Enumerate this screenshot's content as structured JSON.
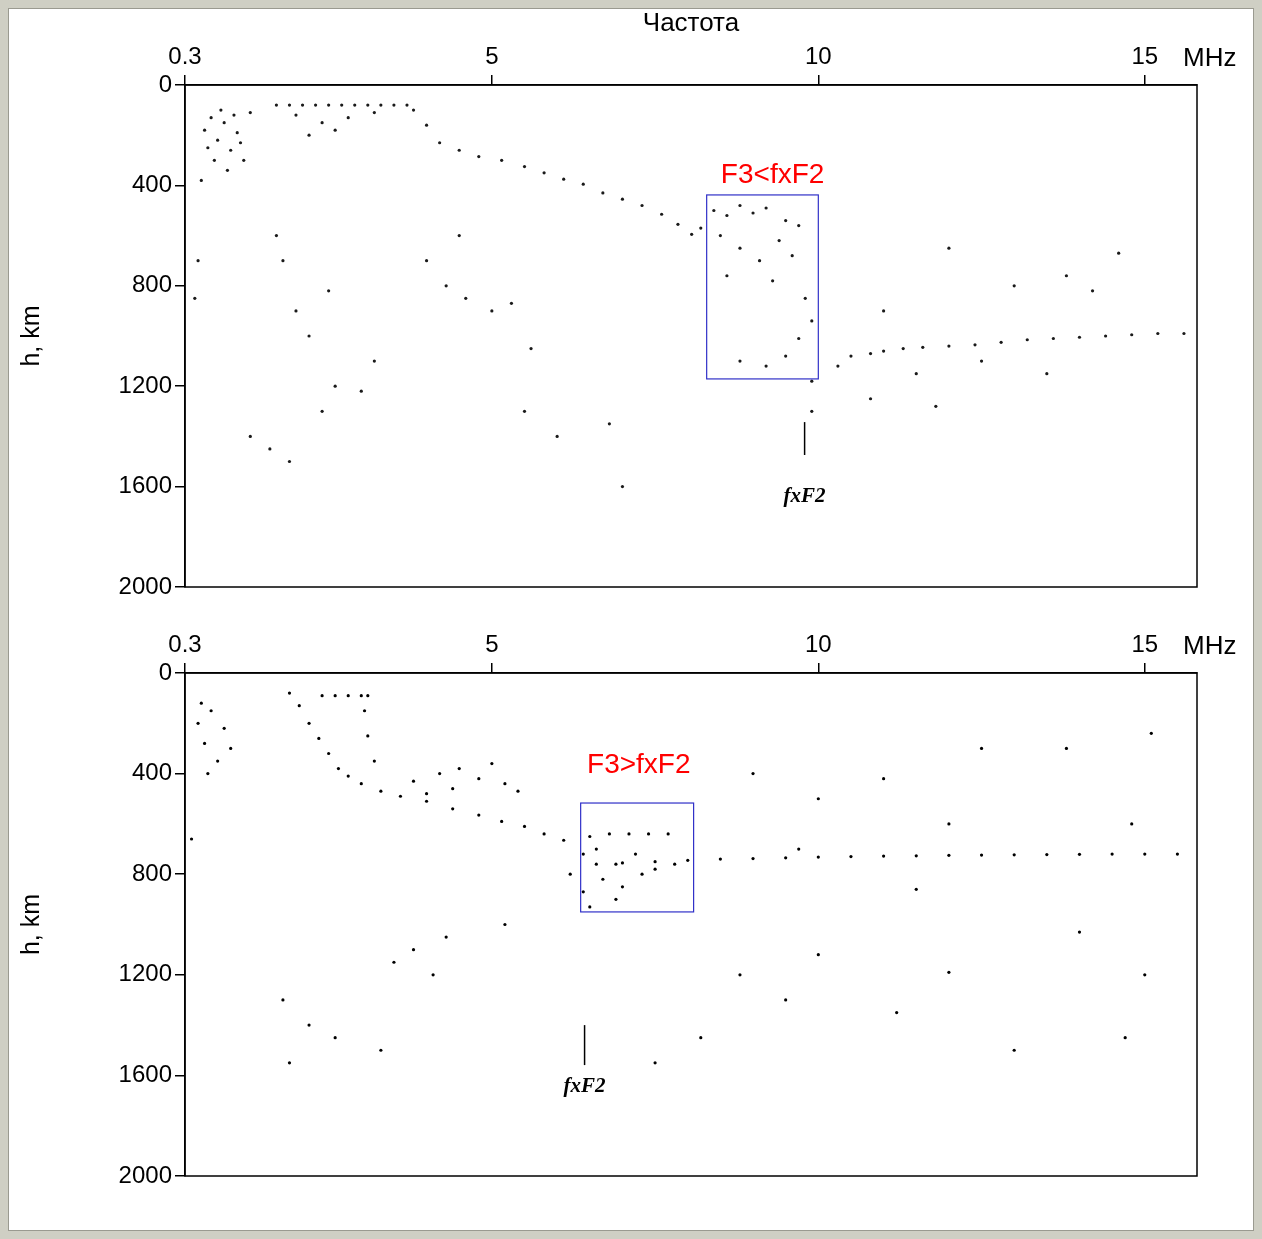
{
  "chart_data": [
    {
      "type": "scatter",
      "xlabel": "Частота",
      "x_unit": "MHz",
      "ylabel": "h, km",
      "xlim": [
        0.3,
        15.8
      ],
      "xticks": [
        0.3,
        5,
        10,
        15
      ],
      "ylim": [
        0,
        2000
      ],
      "yticks": [
        0,
        400,
        800,
        1200,
        1600,
        2000
      ],
      "grid": false,
      "color": "#1a1a1a",
      "marker": "dot",
      "x": [
        0.6,
        0.7,
        0.8,
        0.9,
        1.0,
        1.1,
        1.2,
        0.75,
        0.95,
        0.55,
        1.05,
        0.85,
        1.15,
        0.65,
        0.5,
        0.45,
        1.3,
        1.7,
        1.9,
        2.1,
        2.3,
        2.5,
        2.7,
        2.9,
        3.1,
        3.3,
        3.5,
        3.7,
        2.0,
        2.4,
        2.8,
        3.2,
        2.2,
        2.6,
        3.8,
        4.0,
        4.2,
        4.5,
        4.8,
        5.15,
        5.5,
        5.8,
        6.1,
        6.4,
        6.7,
        7.0,
        7.3,
        7.6,
        7.85,
        8.06,
        8.2,
        8.4,
        8.6,
        8.8,
        9.0,
        9.2,
        9.5,
        9.7,
        8.5,
        8.8,
        9.1,
        9.4,
        9.6,
        8.6,
        9.3,
        9.8,
        9.9,
        9.7,
        9.5,
        9.2,
        8.8,
        9.9,
        10.3,
        10.5,
        10.8,
        11.0,
        11.3,
        11.6,
        12.0,
        12.4,
        12.8,
        13.2,
        13.6,
        14.0,
        14.4,
        14.8,
        15.2,
        15.6,
        1.3,
        1.6,
        1.9,
        2.4,
        2.6,
        1.7,
        1.8,
        2.0,
        2.2,
        2.5,
        3.0,
        3.2,
        4.0,
        4.3,
        4.6,
        5.0,
        5.3,
        4.5,
        5.6,
        6.0,
        6.8,
        7.0,
        5.5,
        9.9,
        10.8,
        11.5,
        12.5,
        13.0,
        13.8,
        14.2,
        11.0,
        12.0,
        14.6,
        13.5,
        11.8
      ],
      "values": [
        180,
        130,
        220,
        150,
        260,
        190,
        300,
        300,
        340,
        380,
        120,
        100,
        230,
        250,
        700,
        850,
        110,
        80,
        80,
        80,
        80,
        80,
        80,
        80,
        80,
        80,
        80,
        80,
        120,
        150,
        130,
        110,
        200,
        180,
        100,
        160,
        230,
        260,
        285,
        300,
        325,
        350,
        375,
        395,
        430,
        455,
        480,
        515,
        555,
        595,
        570,
        500,
        520,
        480,
        510,
        490,
        540,
        560,
        600,
        650,
        700,
        620,
        680,
        760,
        780,
        850,
        940,
        1010,
        1080,
        1120,
        1100,
        1180,
        1120,
        1080,
        1070,
        1060,
        1050,
        1045,
        1040,
        1035,
        1025,
        1015,
        1010,
        1005,
        1000,
        995,
        990,
        990,
        1400,
        1450,
        1500,
        1300,
        1200,
        600,
        700,
        900,
        1000,
        820,
        1220,
        1100,
        700,
        800,
        850,
        900,
        870,
        600,
        1050,
        1400,
        1350,
        1600,
        1300,
        1300,
        1250,
        1150,
        1100,
        800,
        760,
        820,
        900,
        650,
        670,
        1150,
        1280
      ],
      "annotations": [
        {
          "type": "box",
          "x": [
            8.29,
            10.0
          ],
          "y": [
            438,
            1171
          ],
          "color": "#3030c8"
        },
        {
          "type": "label",
          "text": "F3<fxF2",
          "x": 9.3,
          "y": 360,
          "color": "#ff0000"
        },
        {
          "type": "marker",
          "text": "fxF2",
          "x": 9.79,
          "y": [
            1343,
            1474
          ],
          "text_y": 1641
        }
      ]
    },
    {
      "type": "scatter",
      "x_unit": "MHz",
      "ylabel": "h, km",
      "xlim": [
        0.3,
        15.8
      ],
      "xticks": [
        0.3,
        5,
        10,
        15
      ],
      "ylim": [
        0,
        2000
      ],
      "yticks": [
        0,
        400,
        800,
        1200,
        1600,
        2000
      ],
      "grid": false,
      "color": "#000000",
      "marker": "dot",
      "x": [
        0.5,
        0.6,
        0.7,
        0.8,
        0.9,
        0.65,
        0.55,
        1.0,
        0.4,
        1.9,
        2.05,
        2.2,
        2.35,
        2.5,
        2.65,
        2.4,
        2.6,
        2.8,
        3.0,
        3.1,
        3.05,
        3.1,
        3.2,
        2.8,
        3.0,
        3.3,
        3.6,
        4.0,
        4.4,
        4.8,
        5.15,
        5.5,
        5.8,
        6.1,
        6.4,
        3.8,
        4.2,
        4.5,
        4.8,
        5.2,
        4.0,
        4.4,
        5.0,
        5.4,
        6.5,
        6.8,
        7.1,
        7.4,
        7.7,
        6.6,
        6.9,
        7.2,
        7.5,
        6.7,
        7.0,
        7.3,
        6.4,
        7.8,
        6.9,
        6.5,
        6.6,
        7.0,
        7.5,
        8.0,
        8.5,
        9.0,
        9.5,
        10.0,
        10.5,
        11.0,
        11.5,
        12.0,
        12.5,
        13.0,
        13.5,
        14.0,
        14.5,
        15.0,
        15.5,
        1.8,
        1.9,
        2.2,
        2.6,
        3.3,
        3.5,
        3.8,
        4.1,
        4.3,
        5.2,
        6.2,
        7.5,
        8.2,
        8.8,
        9.5,
        10.0,
        11.2,
        12.0,
        13.0,
        14.0,
        14.7,
        15.0,
        9.0,
        10.0,
        11.0,
        12.0,
        12.5,
        13.8,
        14.8,
        15.1,
        9.7,
        11.5
      ],
      "values": [
        200,
        280,
        150,
        350,
        220,
        400,
        120,
        300,
        660,
        80,
        130,
        200,
        260,
        320,
        380,
        90,
        90,
        90,
        90,
        90,
        150,
        250,
        350,
        410,
        440,
        470,
        490,
        510,
        540,
        565,
        590,
        610,
        640,
        665,
        720,
        430,
        400,
        380,
        420,
        440,
        480,
        460,
        360,
        470,
        650,
        640,
        640,
        640,
        640,
        700,
        760,
        720,
        780,
        820,
        850,
        800,
        870,
        760,
        900,
        930,
        760,
        755,
        750,
        745,
        740,
        738,
        735,
        732,
        730,
        728,
        727,
        725,
        724,
        723,
        722,
        721,
        720,
        720,
        720,
        1300,
        1550,
        1400,
        1450,
        1500,
        1150,
        1100,
        1200,
        1050,
        1000,
        800,
        1550,
        1450,
        1200,
        1300,
        1120,
        1350,
        1190,
        1500,
        1030,
        1450,
        1200,
        400,
        500,
        420,
        600,
        300,
        300,
        600,
        240,
        700,
        860
      ],
      "annotations": [
        {
          "type": "box",
          "x": [
            6.36,
            8.09
          ],
          "y": [
            517,
            950
          ],
          "color": "#3030c8"
        },
        {
          "type": "label",
          "text": "F3>fxF2",
          "x": 7.25,
          "y": 366,
          "color": "#ff0000"
        },
        {
          "type": "marker",
          "text": "fxF2",
          "x": 6.42,
          "y": [
            1400,
            1559
          ],
          "text_y": 1646
        }
      ]
    }
  ]
}
